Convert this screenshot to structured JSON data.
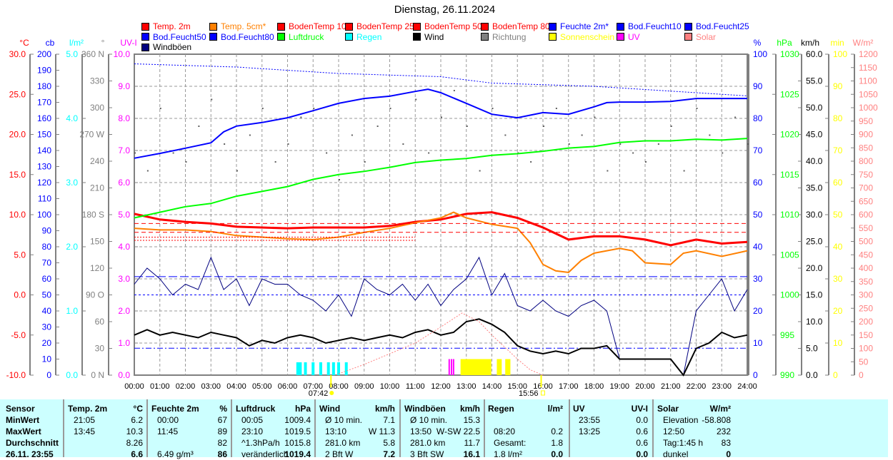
{
  "title": "Dienstag, 26.11.2024",
  "legend": [
    {
      "label": "Temp. 2m",
      "color": "#ff0000"
    },
    {
      "label": "Temp. 5cm*",
      "color": "#ff8000"
    },
    {
      "label": "BodenTemp 10",
      "color": "#ff0000"
    },
    {
      "label": "BodenTemp 25",
      "color": "#ff0000"
    },
    {
      "label": "BodenTemp 50",
      "color": "#ff0000"
    },
    {
      "label": "BodenTemp 80",
      "color": "#ff0000"
    },
    {
      "label": "Feuchte 2m*",
      "color": "#0000ff"
    },
    {
      "label": "Bod.Feucht10",
      "color": "#0000ff"
    },
    {
      "label": "Bod.Feucht25",
      "color": "#0000ff"
    },
    {
      "label": "Bod.Feucht50",
      "color": "#0000ff"
    },
    {
      "label": "Bod.Feucht80",
      "color": "#0000ff"
    },
    {
      "label": "Luftdruck",
      "color": "#00ff00"
    },
    {
      "label": "Regen",
      "color": "#00ffff"
    },
    {
      "label": "Wind",
      "color": "#000000"
    },
    {
      "label": "Richtung",
      "color": "#808080"
    },
    {
      "label": "Sonnenschein",
      "color": "#ffff00"
    },
    {
      "label": "UV",
      "color": "#ff00ff"
    },
    {
      "label": "Solar",
      "color": "#ff8080"
    },
    {
      "label": "Windböen",
      "color": "#000080"
    }
  ],
  "chart_data": {
    "type": "line",
    "title": "Dienstag, 26.11.2024",
    "xlabel": "",
    "xlim": [
      0,
      24
    ],
    "x_ticks": [
      "00:00",
      "01:00",
      "02:00",
      "03:00",
      "04:00",
      "05:00",
      "06:00",
      "07:00",
      "08:00",
      "09:00",
      "10:00",
      "11:00",
      "12:00",
      "13:00",
      "14:00",
      "15:00",
      "16:00",
      "17:00",
      "18:00",
      "19:00",
      "20:00",
      "21:00",
      "22:00",
      "23:00",
      "24:00"
    ],
    "sunrise": "07:42",
    "sunset": "15:56",
    "axes_left": [
      {
        "unit": "°C",
        "color": "#ff0000",
        "min": -10,
        "max": 30,
        "step": 5,
        "decimals": 1
      },
      {
        "unit": "cb",
        "color": "#0000ff",
        "min": 0,
        "max": 200,
        "step": 10,
        "decimals": 0
      },
      {
        "unit": "l/m²",
        "color": "#00ffff",
        "min": 0,
        "max": 5,
        "step": 1,
        "decimals": 1
      },
      {
        "unit": "°",
        "color": "#808080",
        "min": 0,
        "max": 360,
        "step": 30,
        "decimals": 0,
        "labels": {
          "360": "360 N",
          "270": "270 W",
          "180": "180 S",
          "90": "90 O",
          "0": "0 N"
        }
      },
      {
        "unit": "UV-I",
        "color": "#ff00ff",
        "min": 0,
        "max": 10,
        "step": 1,
        "decimals": 1
      }
    ],
    "axes_right": [
      {
        "unit": "%",
        "color": "#0000ff",
        "min": 0,
        "max": 100,
        "step": 10,
        "decimals": 0
      },
      {
        "unit": "hPa",
        "color": "#00ff00",
        "min": 990,
        "max": 1030,
        "step": 5,
        "decimals": 0
      },
      {
        "unit": "km/h",
        "color": "#000000",
        "min": 0,
        "max": 60,
        "step": 5,
        "decimals": 1
      },
      {
        "unit": "min",
        "color": "#ffff00",
        "min": 0,
        "max": 100,
        "step": 10,
        "decimals": 0
      },
      {
        "unit": "W/m²",
        "color": "#ff8080",
        "min": 0,
        "max": 1200,
        "step": 50,
        "decimals": 0
      }
    ],
    "series": [
      {
        "name": "Temp. 2m",
        "axis": "°C",
        "color": "#ff0000",
        "width": 3,
        "x": [
          0,
          1,
          2,
          3,
          4,
          5,
          6,
          7,
          8,
          9,
          10,
          11,
          12,
          13,
          14,
          15,
          16,
          17,
          18,
          19,
          20,
          21,
          22,
          23,
          24
        ],
        "y": [
          10.1,
          9.4,
          9.1,
          8.9,
          8.5,
          8.4,
          8.3,
          8.4,
          8.4,
          8.4,
          8.6,
          9.1,
          9.4,
          10.1,
          10.3,
          9.6,
          8.4,
          6.9,
          7.3,
          7.3,
          6.9,
          6.2,
          6.9,
          6.4,
          6.6
        ]
      },
      {
        "name": "Temp. 5cm*",
        "axis": "°C",
        "color": "#ff8000",
        "width": 2,
        "x": [
          0,
          1,
          2,
          3,
          4,
          5,
          6,
          7,
          8,
          9,
          10,
          11,
          12,
          12.5,
          13,
          14,
          15,
          15.5,
          16,
          16.5,
          17,
          17.5,
          18,
          19,
          19.5,
          20,
          21,
          21.5,
          22,
          23,
          24
        ],
        "y": [
          8.3,
          8.1,
          8.1,
          7.9,
          7.4,
          7.2,
          7.0,
          6.9,
          7.2,
          7.8,
          8.3,
          9.0,
          9.6,
          10.3,
          9.6,
          8.8,
          8.3,
          6.5,
          3.8,
          3.0,
          2.8,
          4.3,
          5.2,
          5.8,
          5.5,
          4.0,
          3.8,
          5.2,
          5.5,
          4.8,
          5.5
        ]
      },
      {
        "name": "BodenTemp 10",
        "axis": "°C",
        "color": "#ff0000",
        "width": 1,
        "dash": "6,4",
        "x": [
          0,
          24
        ],
        "y": [
          8.9,
          8.9
        ]
      },
      {
        "name": "BodenTemp 25",
        "axis": "°C",
        "color": "#ff0000",
        "width": 1,
        "dash": "6,4",
        "x": [
          0,
          24
        ],
        "y": [
          7.8,
          7.8
        ]
      },
      {
        "name": "BodenTemp 50",
        "axis": "°C",
        "color": "#ff0000",
        "width": 1,
        "dash": "2,2",
        "x": [
          0,
          11
        ],
        "y": [
          7.2,
          7.2
        ]
      },
      {
        "name": "BodenTemp 80",
        "axis": "°C",
        "color": "#ff0000",
        "width": 1,
        "dash": "2,2",
        "x": [
          0,
          11
        ],
        "y": [
          6.8,
          6.8
        ]
      },
      {
        "name": "Feuchte 2m*",
        "axis": "%",
        "color": "#0000ff",
        "width": 2,
        "x": [
          0,
          1,
          2,
          3,
          3.5,
          4,
          5,
          6,
          7,
          8,
          9,
          10,
          11,
          11.5,
          12,
          13,
          14,
          15,
          16,
          17,
          18,
          18.5,
          19,
          20,
          21,
          22,
          24
        ],
        "y": [
          67.6,
          69.1,
          70.7,
          72.4,
          75.8,
          77.6,
          78.7,
          80.2,
          82.4,
          84.7,
          86.2,
          86.9,
          88.4,
          89.1,
          88,
          84.7,
          81.3,
          80.2,
          81.8,
          81.3,
          83.6,
          84.9,
          85.1,
          85.1,
          85.3,
          86.2,
          86.2
        ]
      },
      {
        "name": "Bod.Feucht10",
        "axis": "%",
        "color": "#0000ff",
        "width": 1,
        "dash": "2,2",
        "x": [
          0,
          4,
          8,
          12,
          14,
          18,
          22,
          24
        ],
        "y": [
          97,
          96,
          94,
          93,
          91,
          90,
          88,
          87
        ]
      },
      {
        "name": "Bod.Feucht25",
        "axis": "%",
        "color": "#0000ff",
        "width": 1,
        "dash": "12,4",
        "x": [
          0,
          24
        ],
        "y": [
          30.7,
          30.7
        ]
      },
      {
        "name": "Bod.Feucht50",
        "axis": "%",
        "color": "#0000ff",
        "width": 1,
        "dash": "3,3",
        "x": [
          0,
          24
        ],
        "y": [
          25,
          25
        ]
      },
      {
        "name": "Bod.Feucht80",
        "axis": "%",
        "color": "#0000ff",
        "width": 1,
        "dash": "8,3,2,3",
        "x": [
          0,
          24
        ],
        "y": [
          8.4,
          8.4
        ]
      },
      {
        "name": "Luftdruck",
        "axis": "hPa",
        "color": "#00ff00",
        "width": 2,
        "x": [
          0,
          1,
          2,
          3,
          4,
          5,
          6,
          7,
          8,
          9,
          10,
          11,
          12,
          13,
          14,
          15,
          16,
          17,
          18,
          19,
          20,
          21,
          22,
          23,
          24
        ],
        "y": [
          1009.6,
          1010.3,
          1011.0,
          1011.4,
          1012.3,
          1012.9,
          1013.5,
          1014.4,
          1015.0,
          1015.4,
          1015.9,
          1016.5,
          1016.8,
          1017.0,
          1017.4,
          1017.6,
          1017.9,
          1018.3,
          1018.5,
          1019.0,
          1019.2,
          1019.2,
          1019.4,
          1019.3,
          1019.5
        ]
      },
      {
        "name": "Windböen",
        "axis": "km/h",
        "color": "#000080",
        "width": 1,
        "step": 0.5,
        "y": [
          17,
          20,
          18,
          15,
          17,
          16,
          22,
          16,
          18,
          13,
          18,
          17,
          17,
          15,
          14,
          12,
          15,
          11,
          18,
          16,
          15,
          17,
          14,
          17,
          13,
          16,
          18,
          22,
          15,
          19,
          13,
          12,
          14,
          12,
          11,
          13,
          14,
          12,
          3,
          3,
          3,
          3,
          3,
          0,
          12,
          15,
          18,
          12,
          16
        ]
      },
      {
        "name": "Wind",
        "axis": "km/h",
        "color": "#000000",
        "width": 2,
        "step": 0.5,
        "y": [
          7.5,
          8.5,
          7.5,
          8,
          7.5,
          7,
          8,
          7.5,
          7,
          5.5,
          6.5,
          6,
          7,
          7.5,
          7,
          6,
          6.5,
          7,
          6.5,
          7,
          7.5,
          7,
          8,
          8.5,
          7.5,
          8,
          10,
          10.5,
          9.5,
          8,
          5.5,
          4.5,
          4,
          4.5,
          4,
          5,
          5,
          5.5,
          3,
          3,
          3,
          3,
          3,
          0,
          5,
          6,
          8,
          7,
          7.5
        ]
      },
      {
        "name": "Solar",
        "axis": "W/m²",
        "color": "#ff8080",
        "width": 1,
        "dash": "2,2",
        "x": [
          8,
          9,
          10,
          11,
          12,
          12.83,
          13.5,
          14,
          15,
          15.5,
          16
        ],
        "y": [
          5,
          40,
          80,
          120,
          180,
          232,
          200,
          150,
          60,
          20,
          0
        ]
      }
    ],
    "richtung": {
      "axis": "°",
      "step": 0.5,
      "y": [
        250,
        230,
        300,
        250,
        240,
        280,
        310,
        260,
        230,
        270,
        300,
        240,
        260,
        290,
        300,
        250,
        220,
        270,
        240,
        280,
        300,
        260,
        310,
        250,
        290,
        320,
        280,
        230,
        300,
        270,
        250,
        240,
        280,
        300,
        260,
        270,
        290,
        230,
        260,
        250,
        240,
        260,
        280,
        230,
        300,
        270,
        250,
        290,
        260
      ]
    },
    "regen": {
      "axis": "l/m²",
      "x": [
        6.4,
        6.5,
        6.7,
        7.0,
        7.3,
        7.6,
        7.8,
        8.0,
        8.3
      ],
      "y": [
        0.2,
        0.2,
        0.2,
        0.2,
        0.2,
        0.2,
        0.2,
        0.2,
        0.2
      ]
    },
    "sonnenschein": {
      "axis": "min",
      "x": [
        12.83,
        12.92,
        13.0,
        13.08,
        13.17,
        13.25,
        13.33,
        13.42,
        13.5,
        13.58,
        13.67,
        13.75,
        13.83,
        13.92,
        14.25,
        14.33,
        14.58,
        14.67
      ],
      "y": [
        5,
        5,
        5,
        5,
        5,
        5,
        5,
        5,
        5,
        5,
        5,
        5,
        5,
        5,
        5,
        5,
        5,
        5
      ]
    },
    "uv": {
      "axis": "UV-I",
      "x": [
        12.33,
        12.42,
        12.5
      ],
      "y": [
        0.5,
        0.5,
        0.5
      ]
    }
  },
  "table": {
    "headers": [
      "Sensor",
      "Temp. 2m",
      "°C",
      "Feuchte 2m",
      "%",
      "Luftdruck",
      "hPa",
      "Wind",
      "km/h",
      "Windböen",
      "km/h",
      "Regen",
      "l/m²",
      "UV",
      "UV-I",
      "Solar",
      "W/m²"
    ],
    "rows": [
      [
        "MinWert",
        "21:05",
        "6.2",
        "00:00",
        "67",
        "00:05",
        "1009.4",
        "Ø 10 min.",
        "7.1",
        "Ø 10 min.",
        "15.3",
        "",
        "",
        "23:55",
        "0.0",
        "Elevation",
        "-58.808"
      ],
      [
        "MaxWert",
        "13:45",
        "10.3",
        "11:45",
        "89",
        "23:10",
        "1019.5",
        "13:10",
        "W 11.3",
        "13:50",
        "W-SW 22.5",
        "08:20",
        "0.2",
        "13:25",
        "0.6",
        "12:50",
        "232"
      ],
      [
        "Durchschnitt",
        "",
        "8.26",
        "",
        "82",
        "^1.3hPa/h",
        "1015.8",
        "281.0 km",
        "5.8",
        "281.0 km",
        "11.7",
        "Gesamt:",
        "1.8",
        "",
        "0.6",
        "Tag:1:45 h",
        "83"
      ],
      [
        "26.11. 23:55",
        "",
        "6.6",
        "6.49 g/m³",
        "86",
        "veränderlich",
        "1019.4",
        "2 Bft W",
        "7.2",
        "3 Bft SW",
        "16.1",
        "1.8 l/m²",
        "0.0",
        "",
        "0.0",
        "dunkel",
        "0"
      ]
    ]
  }
}
